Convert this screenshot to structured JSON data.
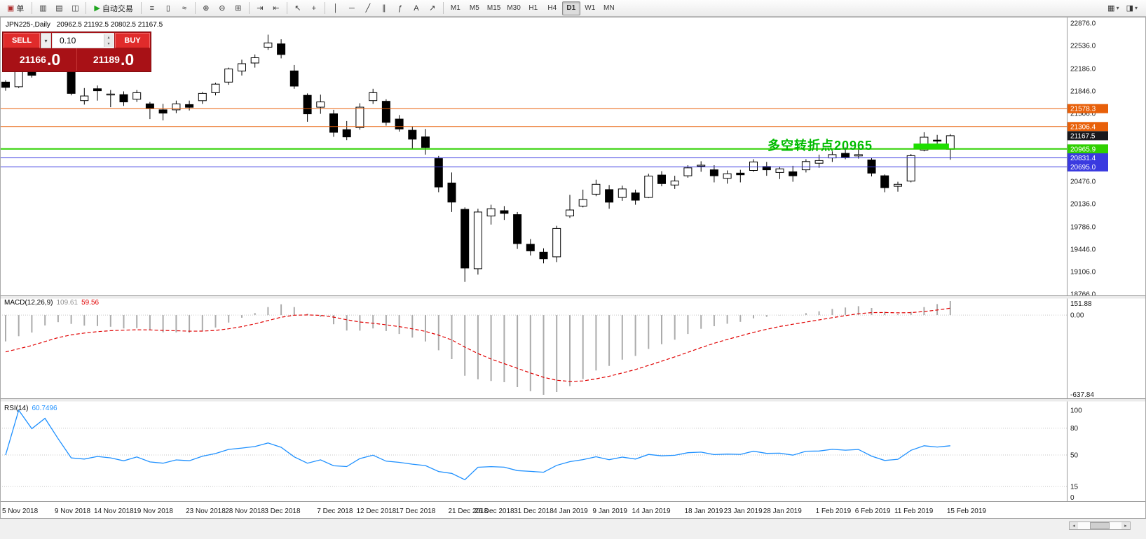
{
  "toolbar": {
    "caret_glyph": "▾",
    "groups": [
      {
        "items": [
          {
            "name": "new-order-button",
            "glyph": "▣",
            "glyph_color": "#b03030",
            "label": "单",
            "wide": true
          }
        ]
      },
      {
        "items": [
          {
            "name": "charts-icon",
            "glyph": "▥"
          },
          {
            "name": "market-watch-icon",
            "glyph": "▤"
          },
          {
            "name": "navigator-icon",
            "glyph": "◫"
          }
        ]
      },
      {
        "items": [
          {
            "name": "autotrading-button",
            "glyph": "▶",
            "glyph_color": "#1fa51f",
            "label": "自动交易",
            "wide": true
          }
        ]
      },
      {
        "items": [
          {
            "name": "bar-chart-type-icon",
            "glyph": "≡"
          },
          {
            "name": "candlestick-type-icon",
            "glyph": "▯"
          },
          {
            "name": "line-chart-type-icon",
            "glyph": "≈"
          }
        ]
      },
      {
        "items": [
          {
            "name": "zoom-in-icon",
            "glyph": "⊕"
          },
          {
            "name": "zoom-out-icon",
            "glyph": "⊖"
          },
          {
            "name": "tile-windows-icon",
            "glyph": "⊞"
          }
        ]
      },
      {
        "items": [
          {
            "name": "auto-scroll-icon",
            "glyph": "⇥"
          },
          {
            "name": "chart-shift-icon",
            "glyph": "⇤"
          }
        ]
      },
      {
        "items": [
          {
            "name": "cursor-icon",
            "glyph": "↖"
          },
          {
            "name": "crosshair-icon",
            "glyph": "+"
          }
        ]
      },
      {
        "items": [
          {
            "name": "vertical-line-icon",
            "glyph": "│"
          },
          {
            "name": "horizontal-line-icon",
            "glyph": "─"
          },
          {
            "name": "trendline-icon",
            "glyph": "╱"
          },
          {
            "name": "channel-icon",
            "glyph": "∥"
          },
          {
            "name": "fibonacci-icon",
            "glyph": "ƒ"
          },
          {
            "name": "text-tool-icon",
            "glyph": "A"
          },
          {
            "name": "arrow-tool-icon",
            "glyph": "↗"
          }
        ]
      }
    ],
    "timeframes": [
      "M1",
      "M5",
      "M15",
      "M30",
      "H1",
      "H4",
      "D1",
      "W1",
      "MN"
    ],
    "active_timeframe": "D1",
    "right_items": [
      {
        "name": "new-chart-button",
        "glyph": "▦",
        "caret": true
      },
      {
        "name": "profiles-button",
        "glyph": "◨",
        "caret": true
      }
    ]
  },
  "chart_header": {
    "symbol_period": "JPN225-,Daily",
    "ohlc": "20962.5 21192.5 20802.5 21167.5"
  },
  "trade_panel": {
    "sell_label": "SELL",
    "buy_label": "BUY",
    "volume": "0.10",
    "dropdown_glyph": "▾",
    "spin_up_glyph": "▴",
    "spin_down_glyph": "▾",
    "sell_price_int": "21166",
    "sell_price_frac": ".0",
    "buy_price_int": "21189",
    "buy_price_frac": ".0",
    "panel_color": "#a81116",
    "button_color": "#e02b2b"
  },
  "scrollbar": {
    "left_glyph": "◂",
    "right_glyph": "▸"
  },
  "chart_data": {
    "type": "candlestick",
    "symbol": "JPN225-",
    "period": "Daily",
    "price_axis_labels": [
      "22876.0",
      "22536.0",
      "22186.0",
      "21846.0",
      "21506.0",
      "21166.0",
      "20816.0",
      "20476.0",
      "20136.0",
      "19786.0",
      "19446.0",
      "19106.0",
      "18766.0"
    ],
    "y_range": [
      18745,
      22950
    ],
    "candle_up_color": "#ffffff",
    "candle_down_color": "#000000",
    "bars": [
      [
        21980,
        22010,
        21850,
        21900
      ],
      [
        21910,
        22200,
        21890,
        22150
      ],
      [
        22160,
        22260,
        22050,
        22085
      ],
      [
        22260,
        22585,
        22250,
        22490
      ],
      [
        22380,
        22420,
        22180,
        22250
      ],
      [
        22190,
        22230,
        21780,
        21810
      ],
      [
        21700,
        21890,
        21640,
        21770
      ],
      [
        21880,
        21930,
        21700,
        21850
      ],
      [
        21790,
        21860,
        21600,
        21800
      ],
      [
        21790,
        21840,
        21620,
        21680
      ],
      [
        21720,
        21860,
        21680,
        21820
      ],
      [
        21650,
        21680,
        21420,
        21580
      ],
      [
        21560,
        21650,
        21400,
        21510
      ],
      [
        21560,
        21700,
        21510,
        21650
      ],
      [
        21640,
        21700,
        21550,
        21600
      ],
      [
        21700,
        21830,
        21650,
        21810
      ],
      [
        21820,
        21970,
        21780,
        21950
      ],
      [
        21980,
        22200,
        21940,
        22180
      ],
      [
        22150,
        22320,
        22080,
        22260
      ],
      [
        22270,
        22400,
        22200,
        22350
      ],
      [
        22510,
        22700,
        22470,
        22575
      ],
      [
        22560,
        22630,
        22340,
        22400
      ],
      [
        22150,
        22240,
        21880,
        21920
      ],
      [
        21780,
        21810,
        21380,
        21500
      ],
      [
        21600,
        21790,
        21500,
        21680
      ],
      [
        21500,
        21560,
        21150,
        21220
      ],
      [
        21260,
        21390,
        21100,
        21150
      ],
      [
        21290,
        21660,
        21260,
        21600
      ],
      [
        21700,
        21880,
        21650,
        21820
      ],
      [
        21690,
        21720,
        21320,
        21370
      ],
      [
        21420,
        21480,
        21230,
        21270
      ],
      [
        21250,
        21310,
        20960,
        21115
      ],
      [
        21150,
        21270,
        20880,
        20990
      ],
      [
        20820,
        20860,
        20310,
        20390
      ],
      [
        20450,
        20610,
        20010,
        20160
      ],
      [
        20050,
        20080,
        18950,
        19160
      ],
      [
        19150,
        20060,
        19060,
        20010
      ],
      [
        19950,
        20120,
        19820,
        20060
      ],
      [
        20030,
        20100,
        19890,
        19990
      ],
      [
        19970,
        20010,
        19450,
        19530
      ],
      [
        19520,
        19600,
        19350,
        19420
      ],
      [
        19400,
        19460,
        19230,
        19300
      ],
      [
        19330,
        19800,
        19250,
        19760
      ],
      [
        19950,
        20270,
        19920,
        20040
      ],
      [
        20100,
        20350,
        20080,
        20200
      ],
      [
        20280,
        20500,
        20250,
        20430
      ],
      [
        20350,
        20420,
        20060,
        20160
      ],
      [
        20230,
        20410,
        20180,
        20360
      ],
      [
        20300,
        20350,
        20120,
        20190
      ],
      [
        20230,
        20590,
        20220,
        20555
      ],
      [
        20570,
        20630,
        20400,
        20440
      ],
      [
        20420,
        20560,
        20360,
        20480
      ],
      [
        20560,
        20720,
        20530,
        20680
      ],
      [
        20710,
        20780,
        20620,
        20720
      ],
      [
        20650,
        20720,
        20460,
        20560
      ],
      [
        20520,
        20640,
        20440,
        20590
      ],
      [
        20600,
        20650,
        20460,
        20575
      ],
      [
        20640,
        20810,
        20620,
        20770
      ],
      [
        20700,
        20770,
        20560,
        20650
      ],
      [
        20610,
        20700,
        20510,
        20665
      ],
      [
        20620,
        20710,
        20470,
        20560
      ],
      [
        20650,
        20810,
        20610,
        20775
      ],
      [
        20750,
        20880,
        20680,
        20790
      ],
      [
        20830,
        20930,
        20770,
        20880
      ],
      [
        20900,
        20990,
        20810,
        20845
      ],
      [
        20860,
        20970,
        20820,
        20880
      ],
      [
        20800,
        20830,
        20550,
        20600
      ],
      [
        20560,
        20580,
        20310,
        20380
      ],
      [
        20400,
        20470,
        20320,
        20430
      ],
      [
        20480,
        20890,
        20460,
        20865
      ],
      [
        20950,
        21220,
        20930,
        21145
      ],
      [
        21100,
        21180,
        21000,
        21090
      ],
      [
        20962.5,
        21192.5,
        20802.5,
        21167.5
      ]
    ],
    "visible_date_labels": [
      {
        "bar": 0,
        "text": "5 Nov 2018"
      },
      {
        "bar": 4,
        "text": "9 Nov 2018"
      },
      {
        "bar": 7,
        "text": "14 Nov 2018"
      },
      {
        "bar": 10,
        "text": "19 Nov 2018"
      },
      {
        "bar": 14,
        "text": "23 Nov 2018"
      },
      {
        "bar": 17,
        "text": "28 Nov 2018"
      },
      {
        "bar": 20,
        "text": "3 Dec 2018"
      },
      {
        "bar": 24,
        "text": "7 Dec 2018"
      },
      {
        "bar": 27,
        "text": "12 Dec 2018"
      },
      {
        "bar": 30,
        "text": "17 Dec 2018"
      },
      {
        "bar": 34,
        "text": "21 Dec 2018"
      },
      {
        "bar": 36,
        "text": "26 Dec 2018"
      },
      {
        "bar": 39,
        "text": "31 Dec 2018"
      },
      {
        "bar": 42,
        "text": "4 Jan 2019"
      },
      {
        "bar": 45,
        "text": "9 Jan 2019"
      },
      {
        "bar": 48,
        "text": "14 Jan 2019"
      },
      {
        "bar": 52,
        "text": "18 Jan 2019"
      },
      {
        "bar": 55,
        "text": "23 Jan 2019"
      },
      {
        "bar": 58,
        "text": "28 Jan 2019"
      },
      {
        "bar": 62,
        "text": "1 Feb 2019"
      },
      {
        "bar": 65,
        "text": "6 Feb 2019"
      },
      {
        "bar": 68,
        "text": "11 Feb 2019"
      },
      {
        "bar": 72,
        "text": "15 Feb 2019"
      }
    ],
    "levels": [
      {
        "value": 21578.3,
        "label": "21578.3",
        "color": "#e8600a",
        "line_width": 1
      },
      {
        "value": 21306.4,
        "label": "21306.4",
        "color": "#e8600a",
        "line_width": 1
      },
      {
        "value": 21167.5,
        "label": "21167.5",
        "color": "#18181c",
        "line_width": 0
      },
      {
        "value": 20965.9,
        "label": "20965.9",
        "color": "#2fd000",
        "line_width": 2
      },
      {
        "value": 20831.4,
        "label": "20831.4",
        "color": "#3a3ae0",
        "line_width": 1
      },
      {
        "value": 20695.0,
        "label": "20695.0",
        "color": "#3a3ae0",
        "line_width": 1
      }
    ],
    "highlight_box": {
      "bar_start": 69.2,
      "bar_end": 71.9,
      "price_top": 21048,
      "price_bottom": 20968,
      "color": "#1ede00"
    },
    "annotation": {
      "text": "多空转折点20965",
      "color": "#00bb00"
    },
    "macd": {
      "label": "MACD(12,26,9)",
      "value_main": "109.61",
      "value_signal": "59.56",
      "axis_labels": [
        "151.88",
        "0.00",
        "-637.84"
      ],
      "histogram_color": "#ababab",
      "signal_color": "#e00000",
      "params": [
        12,
        26,
        9
      ]
    },
    "rsi": {
      "label": "RSI(14)",
      "value": "60.7496",
      "period": 14,
      "axis_labels": [
        "100",
        "80",
        "50",
        "15",
        "0"
      ],
      "levels": [
        80,
        50,
        15
      ],
      "line_color": "#1e90ff"
    }
  }
}
